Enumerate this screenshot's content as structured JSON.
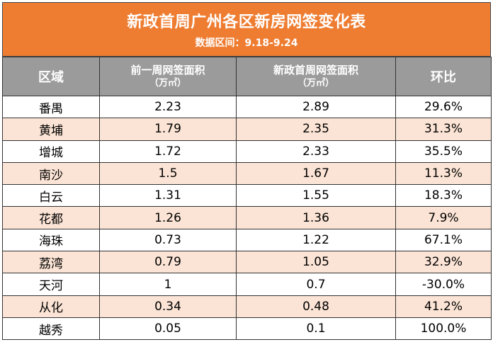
{
  "title": "新政首周广州各区新房网签变化表",
  "subtitle": "数据区间：9.18-9.24",
  "headers": {
    "district": "区域",
    "prev_line1": "前一周网签面积",
    "prev_line2": "（万㎡）",
    "new_line1": "新政首周网签面积",
    "new_line2": "（万㎡）",
    "ratio": "环比"
  },
  "rows": [
    {
      "district": "番禺",
      "prev": "2.23",
      "new": "2.89",
      "ratio": "29.6%"
    },
    {
      "district": "黄埔",
      "prev": "1.79",
      "new": "2.35",
      "ratio": "31.3%"
    },
    {
      "district": "增城",
      "prev": "1.72",
      "new": "2.33",
      "ratio": "35.5%"
    },
    {
      "district": "南沙",
      "prev": "1.5",
      "new": "1.67",
      "ratio": "11.3%"
    },
    {
      "district": "白云",
      "prev": "1.31",
      "new": "1.55",
      "ratio": "18.3%"
    },
    {
      "district": "花都",
      "prev": "1.26",
      "new": "1.36",
      "ratio": "7.9%"
    },
    {
      "district": "海珠",
      "prev": "0.73",
      "new": "1.22",
      "ratio": "67.1%"
    },
    {
      "district": "荔湾",
      "prev": "0.79",
      "new": "1.05",
      "ratio": "32.9%"
    },
    {
      "district": "天河",
      "prev": "1",
      "new": "0.7",
      "ratio": "-30.0%"
    },
    {
      "district": "从化",
      "prev": "0.34",
      "new": "0.48",
      "ratio": "41.2%"
    },
    {
      "district": "越秀",
      "prev": "0.05",
      "new": "0.1",
      "ratio": "100.0%"
    }
  ],
  "colors": {
    "title_bg": "#ee7d32",
    "header_bg": "#9b9b9b",
    "alt_row_bg": "#fbe4d5"
  }
}
